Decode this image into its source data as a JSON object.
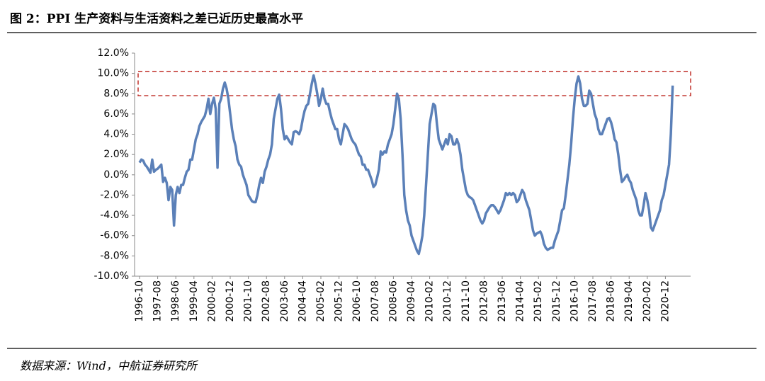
{
  "chart_data": {
    "type": "line",
    "title": "图 2：PPI 生产资料与生活资料之差已近历史最高水平",
    "source": "数据来源：Wind，中航证券研究所",
    "color": "#5b80b8",
    "highlight_band": [
      7.8,
      10.2
    ],
    "ylim": [
      -10,
      12
    ],
    "yticks": [
      {
        "value": -10,
        "label": "-10.0%"
      },
      {
        "value": -8,
        "label": "-8.0%"
      },
      {
        "value": -6,
        "label": "-6.0%"
      },
      {
        "value": -4,
        "label": "-4.0%"
      },
      {
        "value": -2,
        "label": "-2.0%"
      },
      {
        "value": 0,
        "label": "0.0%"
      },
      {
        "value": 2,
        "label": "2.0%"
      },
      {
        "value": 4,
        "label": "4.0%"
      },
      {
        "value": 6,
        "label": "6.0%"
      },
      {
        "value": 8,
        "label": "8.0%"
      },
      {
        "value": 10,
        "label": "10.0%"
      },
      {
        "value": 12,
        "label": "12.0%"
      }
    ],
    "categories": [
      "1996-10",
      null,
      null,
      null,
      null,
      null,
      null,
      null,
      null,
      null,
      "1997-08",
      null,
      null,
      null,
      null,
      null,
      null,
      null,
      null,
      null,
      "1998-06",
      null,
      null,
      null,
      null,
      null,
      null,
      null,
      null,
      null,
      "1999-04",
      null,
      null,
      null,
      null,
      null,
      null,
      null,
      null,
      null,
      "2000-02",
      null,
      null,
      null,
      null,
      null,
      null,
      null,
      null,
      null,
      "2000-12",
      null,
      null,
      null,
      null,
      null,
      null,
      null,
      null,
      null,
      "2001-10",
      null,
      null,
      null,
      null,
      null,
      null,
      null,
      null,
      null,
      "2002-08",
      null,
      null,
      null,
      null,
      null,
      null,
      null,
      null,
      null,
      "2003-06",
      null,
      null,
      null,
      null,
      null,
      null,
      null,
      null,
      null,
      "2004-04",
      null,
      null,
      null,
      null,
      null,
      null,
      null,
      null,
      null,
      "2005-02",
      null,
      null,
      null,
      null,
      null,
      null,
      null,
      null,
      null,
      "2005-12",
      null,
      null,
      null,
      null,
      null,
      null,
      null,
      null,
      null,
      "2006-10",
      null,
      null,
      null,
      null,
      null,
      null,
      null,
      null,
      null,
      "2007-08",
      null,
      null,
      null,
      null,
      null,
      null,
      null,
      null,
      null,
      "2008-06",
      null,
      null,
      null,
      null,
      null,
      null,
      null,
      null,
      null,
      "2009-04",
      null,
      null,
      null,
      null,
      null,
      null,
      null,
      null,
      null,
      "2010-02",
      null,
      null,
      null,
      null,
      null,
      null,
      null,
      null,
      null,
      "2010-12",
      null,
      null,
      null,
      null,
      null,
      null,
      null,
      null,
      null,
      "2011-10",
      null,
      null,
      null,
      null,
      null,
      null,
      null,
      null,
      null,
      "2012-08",
      null,
      null,
      null,
      null,
      null,
      null,
      null,
      null,
      null,
      "2013-06",
      null,
      null,
      null,
      null,
      null,
      null,
      null,
      null,
      null,
      "2014-04",
      null,
      null,
      null,
      null,
      null,
      null,
      null,
      null,
      null,
      "2015-02",
      null,
      null,
      null,
      null,
      null,
      null,
      null,
      null,
      null,
      "2015-12",
      null,
      null,
      null,
      null,
      null,
      null,
      null,
      null,
      null,
      "2016-10",
      null,
      null,
      null,
      null,
      null,
      null,
      null,
      null,
      null,
      "2017-08",
      null,
      null,
      null,
      null,
      null,
      null,
      null,
      null,
      null,
      "2018-06",
      null,
      null,
      null,
      null,
      null,
      null,
      null,
      null,
      null,
      "2019-04",
      null,
      null,
      null,
      null,
      null,
      null,
      null,
      null,
      null,
      "2020-02",
      null,
      null,
      null,
      null,
      null,
      null,
      null,
      null,
      null,
      "2020-12",
      null,
      null,
      null,
      null
    ],
    "values": [
      1.2,
      1.5,
      1.4,
      1.0,
      0.8,
      0.5,
      0.2,
      1.5,
      0.3,
      0.5,
      0.6,
      0.8,
      1.0,
      -0.7,
      -0.3,
      -0.8,
      -2.5,
      -1.2,
      -1.5,
      -5.0,
      -2.0,
      -1.2,
      -1.8,
      -1.0,
      -1.0,
      -0.3,
      0.3,
      0.5,
      1.5,
      1.5,
      2.5,
      3.5,
      4.0,
      4.8,
      5.2,
      5.5,
      5.8,
      6.5,
      7.5,
      6.0,
      7.0,
      7.6,
      6.5,
      0.7,
      7.0,
      7.5,
      8.5,
      9.1,
      8.5,
      7.5,
      6.0,
      4.5,
      3.5,
      2.8,
      1.5,
      1.0,
      0.8,
      0.0,
      -0.5,
      -1.0,
      -2.0,
      -2.3,
      -2.6,
      -2.7,
      -2.7,
      -2.0,
      -1.0,
      -0.3,
      -0.8,
      0.3,
      0.8,
      1.5,
      2.0,
      3.0,
      5.5,
      6.5,
      7.5,
      7.9,
      6.5,
      4.5,
      3.5,
      3.8,
      3.5,
      3.2,
      3.0,
      4.2,
      4.3,
      4.2,
      4.0,
      4.5,
      5.5,
      6.3,
      6.8,
      7.0,
      8.0,
      9.0,
      9.8,
      9.0,
      8.0,
      6.8,
      7.5,
      8.5,
      7.5,
      7.0,
      7.0,
      6.2,
      5.5,
      5.0,
      4.5,
      4.5,
      3.5,
      3.0,
      4.0,
      5.0,
      4.8,
      4.5,
      4.0,
      3.5,
      3.2,
      3.0,
      2.5,
      2.0,
      1.8,
      1.0,
      1.0,
      0.5,
      0.5,
      0.0,
      -0.5,
      -1.2,
      -1.0,
      -0.3,
      0.5,
      2.3,
      2.0,
      2.3,
      2.2,
      3.0,
      3.5,
      4.0,
      5.0,
      6.5,
      8.0,
      7.5,
      5.5,
      2.0,
      -2.0,
      -3.5,
      -4.5,
      -5.0,
      -6.0,
      -6.5,
      -7.0,
      -7.5,
      -7.8,
      -7.0,
      -6.0,
      -4.0,
      -1.0,
      2.0,
      5.0,
      6.0,
      7.0,
      6.8,
      5.0,
      3.5,
      3.0,
      2.5,
      3.0,
      3.5,
      3.0,
      4.0,
      3.8,
      3.0,
      3.0,
      3.5,
      3.0,
      2.0,
      0.5,
      -0.5,
      -1.5,
      -2.0,
      -2.2,
      -2.3,
      -2.5,
      -3.0,
      -3.5,
      -4.0,
      -4.5,
      -4.8,
      -4.5,
      -3.8,
      -3.5,
      -3.2,
      -3.0,
      -3.0,
      -3.2,
      -3.5,
      -3.8,
      -3.5,
      -3.0,
      -2.5,
      -1.8,
      -2.0,
      -1.8,
      -2.0,
      -1.8,
      -2.0,
      -2.7,
      -2.5,
      -2.0,
      -1.5,
      -1.8,
      -2.5,
      -3.0,
      -3.5,
      -4.5,
      -5.5,
      -6.0,
      -5.8,
      -5.7,
      -5.6,
      -6.0,
      -6.8,
      -7.2,
      -7.4,
      -7.3,
      -7.2,
      -7.2,
      -6.5,
      -6.0,
      -5.5,
      -4.5,
      -3.5,
      -3.3,
      -2.0,
      -0.5,
      1.0,
      3.0,
      5.5,
      7.5,
      9.0,
      9.7,
      9.0,
      7.5,
      6.8,
      6.8,
      7.0,
      8.3,
      8.0,
      7.0,
      6.0,
      5.5,
      4.5,
      4.0,
      4.0,
      4.5,
      5.0,
      5.5,
      5.6,
      5.2,
      4.5,
      3.5,
      3.2,
      2.0,
      0.5,
      -0.7,
      -0.5,
      -0.2,
      0.0,
      -0.5,
      -0.8,
      -1.5,
      -2.0,
      -2.5,
      -3.5,
      -4.0,
      -4.0,
      -3.0,
      -1.8,
      -2.5,
      -3.5,
      -5.2,
      -5.5,
      -5.0,
      -4.5,
      -4.0,
      -3.5,
      -2.5,
      -2.0,
      -1.0,
      0.0,
      1.0,
      4.0,
      8.8
    ]
  }
}
